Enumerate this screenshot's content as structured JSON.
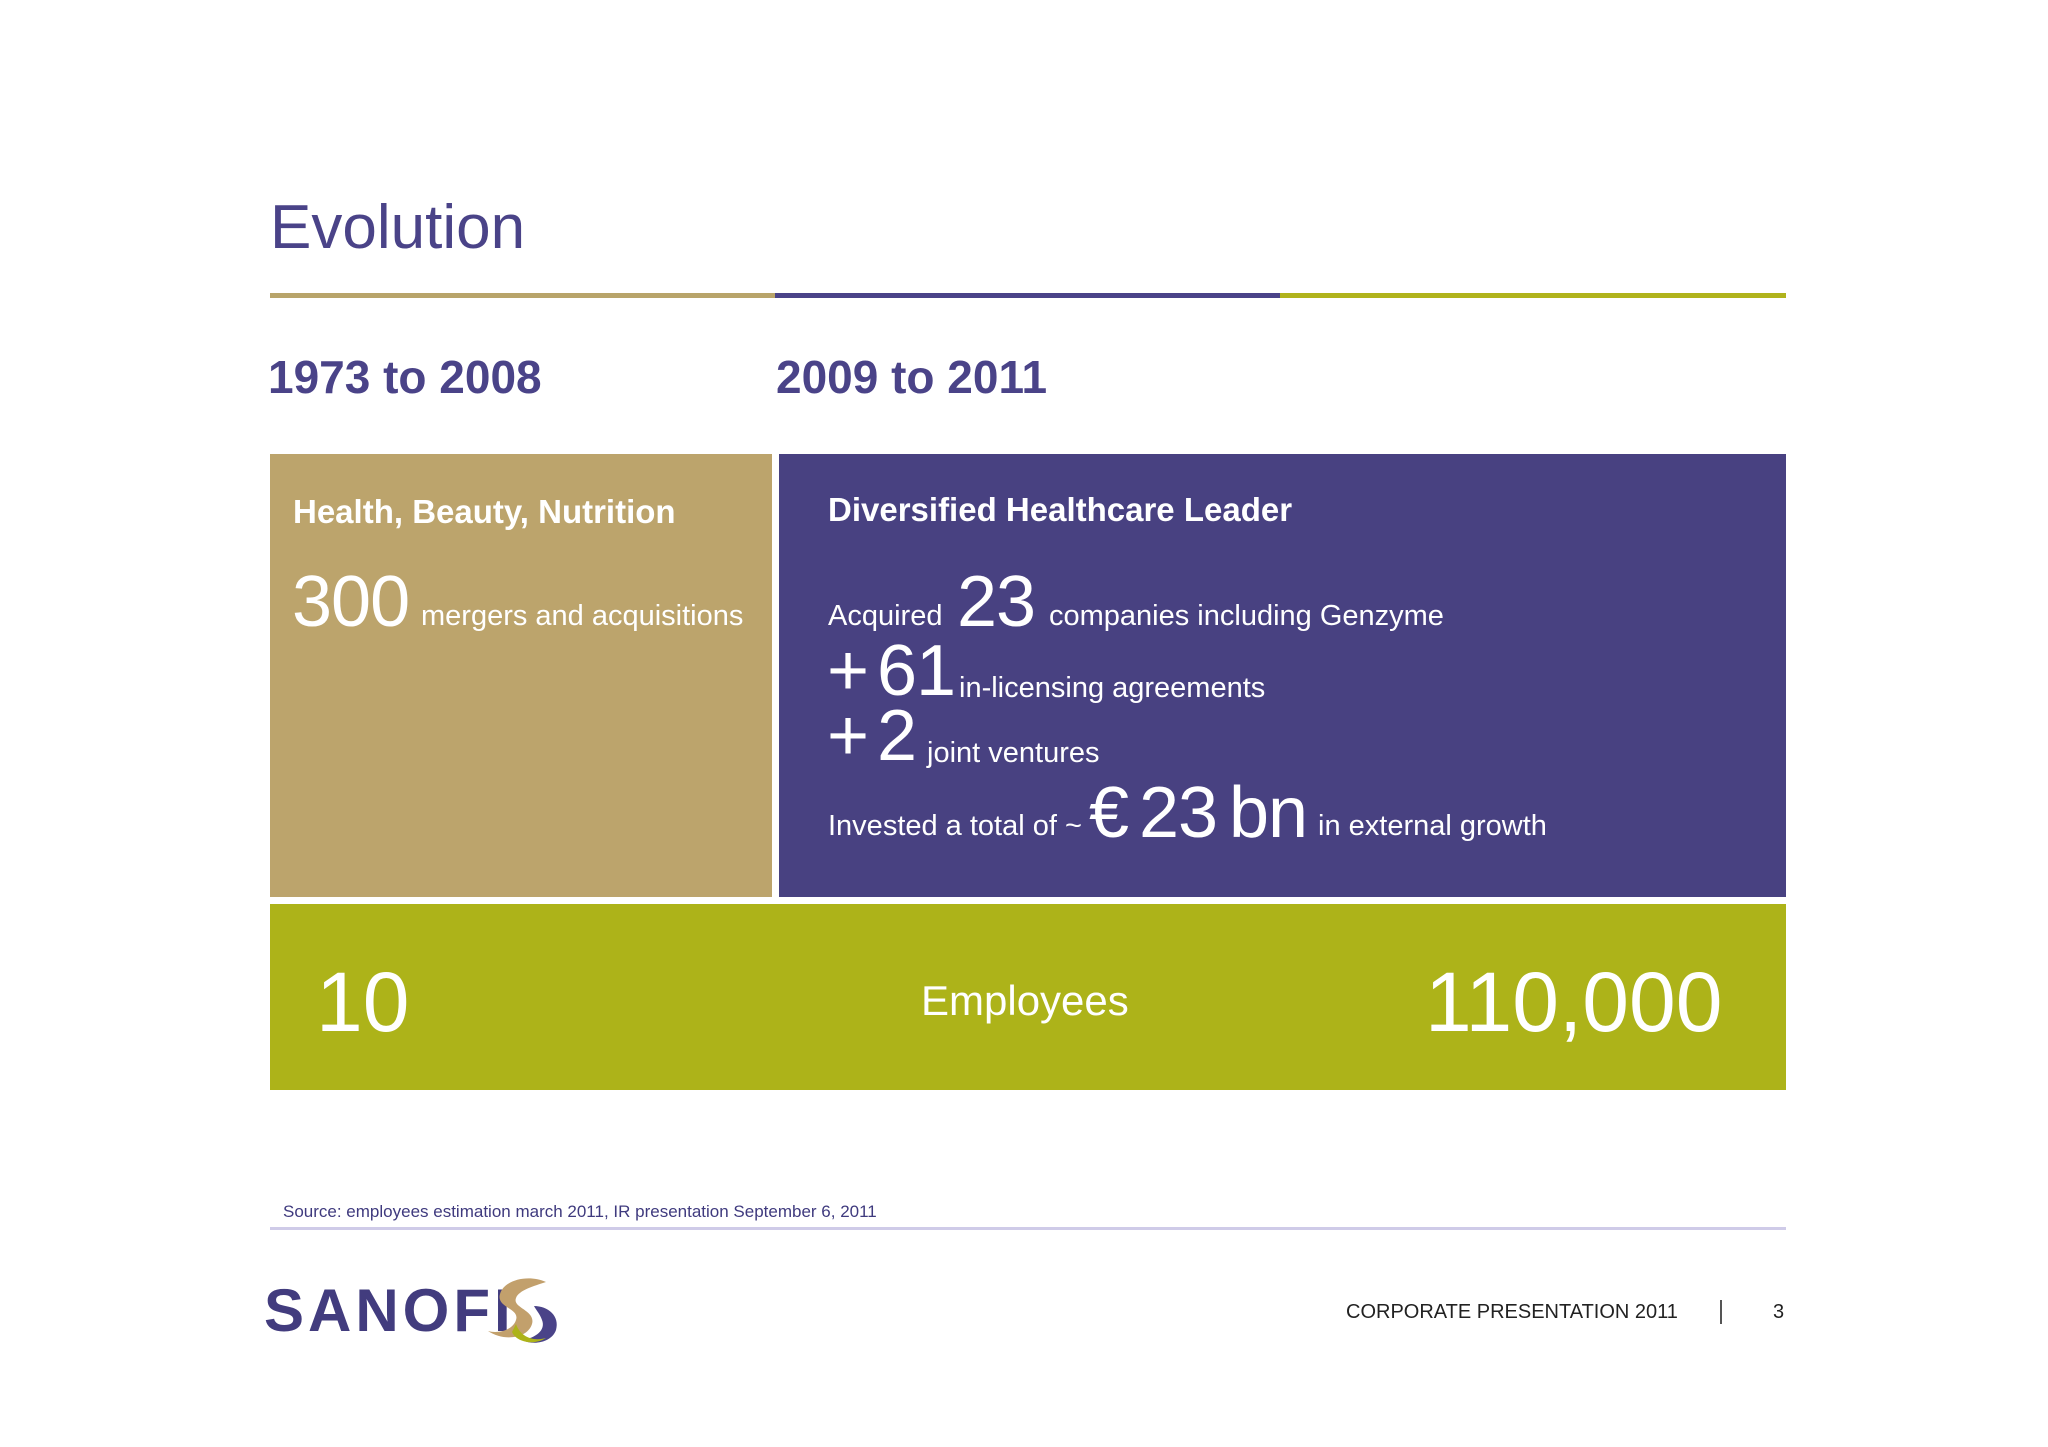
{
  "slide": {
    "title": "Evolution",
    "colors": {
      "tan": "#bca46c",
      "purple": "#484181",
      "olive": "#adb319",
      "title": "#4a4388"
    }
  },
  "periods": {
    "first": "1973 to 2008",
    "second": "2009 to 2011"
  },
  "left_panel": {
    "heading": "Health, Beauty, Nutrition",
    "count": "300",
    "count_label": "mergers and acquisitions"
  },
  "right_panel": {
    "heading": "Diversified Healthcare Leader",
    "acquired_prefix": "Acquired",
    "acquired_count": "23",
    "acquired_suffix": "companies including Genzyme",
    "licensing_plus": "+",
    "licensing_count": "61",
    "licensing_label": "in-licensing agreements",
    "jv_plus": "+",
    "jv_count": "2",
    "jv_label": "joint ventures",
    "invest_prefix": "Invested a total of ~",
    "invest_currency": "€",
    "invest_amount": "23",
    "invest_unit": "bn",
    "invest_suffix": "in external growth"
  },
  "employees": {
    "start": "10",
    "label": "Employees",
    "end": "110,000"
  },
  "source": "Source: employees estimation march 2011, IR presentation September 6, 2011",
  "footer": {
    "logo": "SANOFI",
    "label": "CORPORATE PRESENTATION 2011",
    "page": "3"
  }
}
